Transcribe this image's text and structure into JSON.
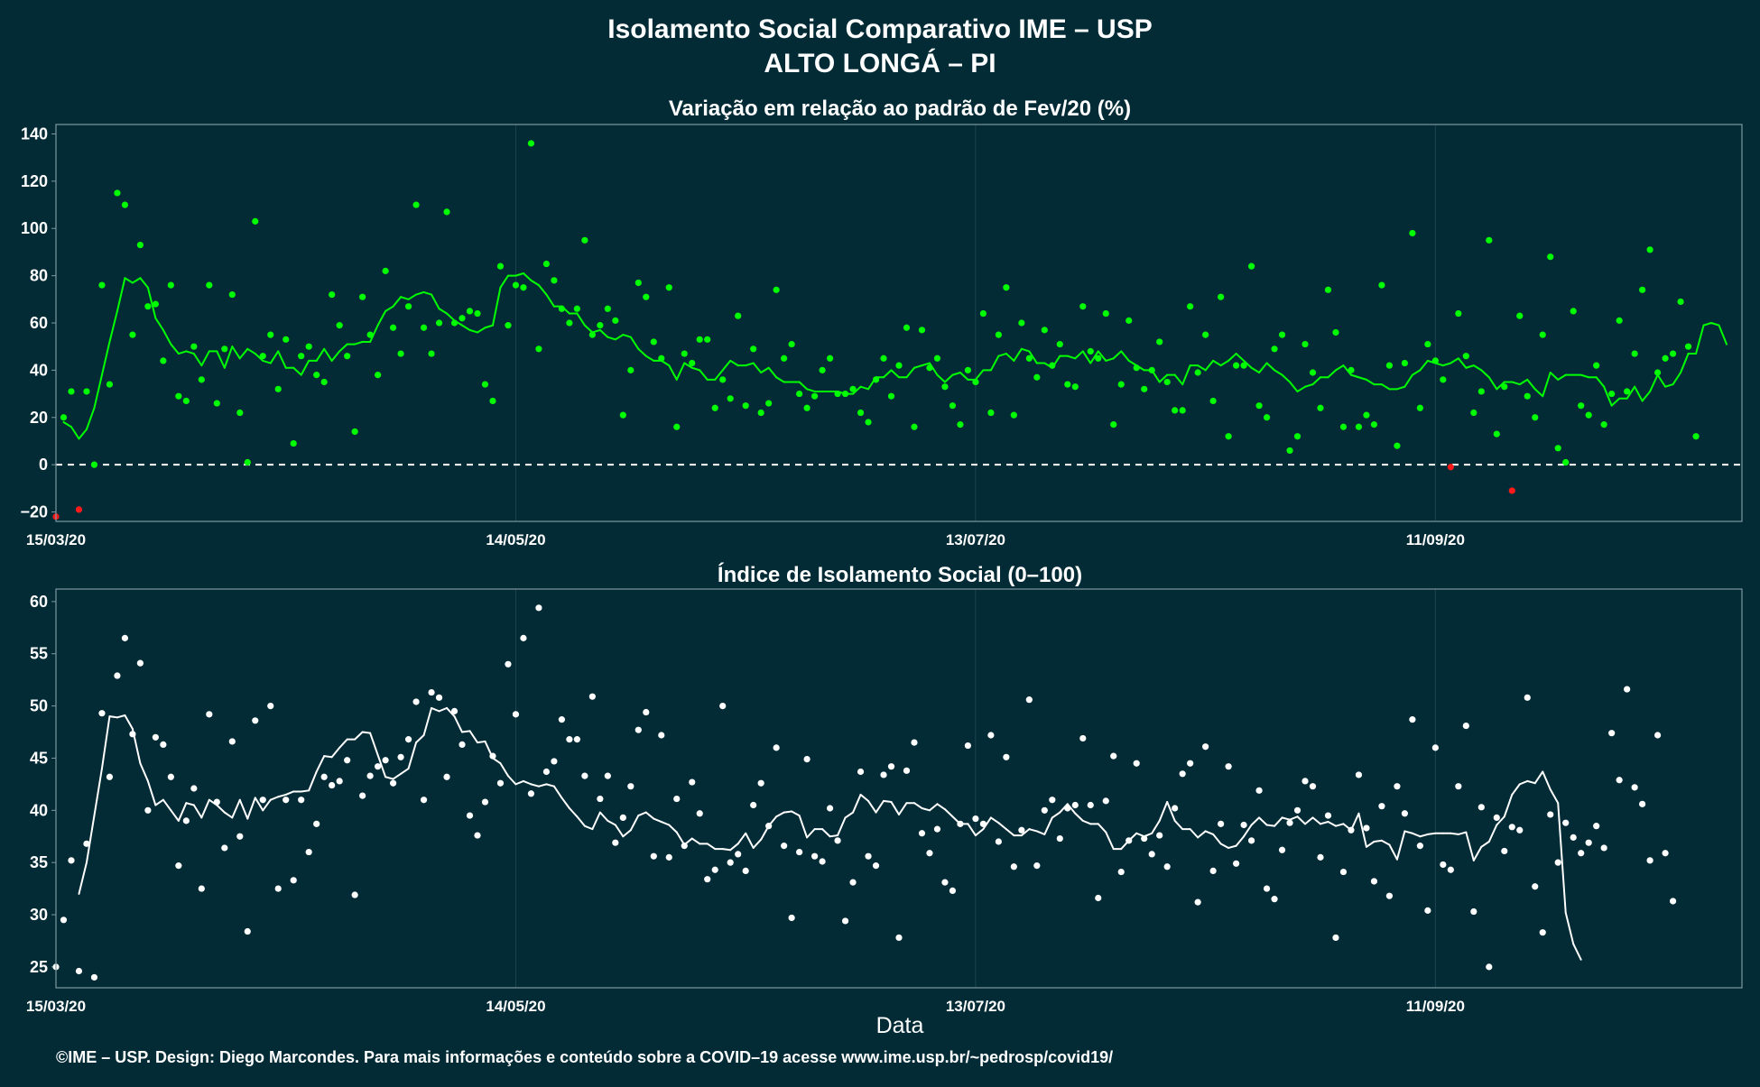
{
  "header": {
    "title": "Isolamento Social Comparativo IME – USP",
    "subtitle": "ALTO LONGÁ – PI"
  },
  "footer": {
    "xlabel": "Data",
    "credit": "©IME – USP. Design: Diego Marcondes. Para mais informações e conteúdo sobre a COVID–19 acesse www.ime.usp.br/~pedrosp/covid19/"
  },
  "colors": {
    "background": "#022b36",
    "positive": "#00ff00",
    "negative": "#ff1a1a",
    "index": "#ffffff",
    "grid": "#1d4450",
    "border": "#7f98a0"
  },
  "chart_data": [
    {
      "type": "scatter",
      "title": "Variação em relação ao padrão de Fev/20 (%)",
      "xlabel": "",
      "ylabel": "",
      "x_range": [
        "2020-03-15",
        "2020-10-21"
      ],
      "ylim": [
        -24,
        144
      ],
      "yticks": [
        -20,
        0,
        20,
        40,
        60,
        80,
        100,
        120,
        140
      ],
      "xticks": [
        {
          "date": "2020-03-15",
          "label": "15/03/20"
        },
        {
          "date": "2020-05-14",
          "label": "14/05/20"
        },
        {
          "date": "2020-07-13",
          "label": "13/07/20"
        },
        {
          "date": "2020-09-11",
          "label": "11/09/20"
        }
      ],
      "reference_line": 0,
      "grid": true,
      "series": [
        {
          "kind": "points",
          "start": "2020-03-15",
          "values": [
            -22,
            20,
            31,
            -19,
            31,
            0,
            76,
            34,
            115,
            110,
            55,
            93,
            67,
            68,
            44,
            76,
            29,
            27,
            50,
            36,
            76,
            26,
            49,
            72,
            22,
            1,
            103,
            46,
            55,
            32,
            53,
            9,
            46,
            50,
            38,
            35,
            72,
            59,
            46,
            14,
            71,
            55,
            38,
            82,
            58,
            47,
            67,
            110,
            58,
            47,
            60,
            107,
            60,
            62,
            65,
            64,
            34,
            27,
            84,
            59,
            76,
            75,
            136,
            49,
            85,
            78,
            66,
            60,
            66,
            95,
            55,
            59,
            66,
            61,
            21,
            40,
            77,
            71,
            52,
            45,
            75,
            16,
            47,
            43,
            53,
            53,
            24,
            36,
            28,
            63,
            25,
            49,
            22,
            26,
            74,
            45,
            51,
            30,
            24,
            29,
            40,
            45,
            30,
            30,
            32,
            22,
            18,
            36,
            45,
            29,
            42,
            58,
            16,
            57,
            41,
            45,
            33,
            25,
            17,
            40,
            35,
            64,
            22,
            55,
            75,
            21,
            60,
            45,
            37,
            57,
            42,
            51,
            34,
            33,
            67,
            48,
            45,
            64,
            17,
            34,
            61,
            41,
            32,
            40,
            52,
            35,
            23,
            23,
            67,
            39,
            55,
            27,
            71,
            12,
            42,
            42,
            84,
            25,
            20,
            49,
            55,
            6,
            12,
            51,
            39,
            24,
            74,
            56,
            16,
            40,
            16,
            21,
            17,
            76,
            42,
            8,
            43,
            98,
            24,
            51,
            44,
            36,
            -1,
            64,
            46,
            22,
            31,
            95,
            13,
            33,
            -11,
            63,
            29,
            20,
            55,
            88,
            7,
            1,
            65,
            25,
            21,
            42,
            17,
            30,
            61,
            31,
            47,
            74,
            91,
            39,
            45,
            47,
            69,
            50,
            12
          ]
        },
        {
          "kind": "moving-average",
          "start": "2020-03-16",
          "values": [
            18,
            16,
            11,
            15,
            24,
            38,
            52,
            65,
            79,
            77,
            79,
            75,
            62,
            57,
            51,
            47,
            48,
            47,
            42,
            48,
            48,
            41,
            50,
            45,
            49,
            47,
            44,
            43,
            48,
            41,
            41,
            38,
            44,
            44,
            49,
            44,
            48,
            51,
            51,
            52,
            52,
            59,
            65,
            67,
            71,
            70,
            72,
            73,
            72,
            66,
            64,
            61,
            59,
            57,
            56,
            58,
            59,
            75,
            80,
            80,
            81,
            78,
            76,
            72,
            67,
            67,
            64,
            64,
            59,
            56,
            57,
            54,
            53,
            55,
            54,
            49,
            46,
            44,
            44,
            42,
            36,
            43,
            41,
            40,
            36,
            36,
            40,
            44,
            42,
            42,
            43,
            39,
            41,
            37,
            35,
            35,
            35,
            32,
            31,
            31,
            31,
            31,
            30,
            30,
            33,
            32,
            37,
            37,
            40,
            37,
            37,
            41,
            42,
            43,
            38,
            35,
            38,
            39,
            36,
            36,
            40,
            40,
            46,
            47,
            44,
            49,
            48,
            43,
            43,
            41,
            46,
            46,
            45,
            48,
            43,
            48,
            44,
            45,
            48,
            44,
            42,
            40,
            40,
            35,
            38,
            38,
            34,
            42,
            42,
            40,
            44,
            42,
            44,
            47,
            44,
            41,
            39,
            43,
            40,
            38,
            35,
            31,
            33,
            34,
            37,
            37,
            40,
            42,
            38,
            37,
            36,
            34,
            34,
            32,
            32,
            33,
            38,
            40,
            44,
            43,
            42,
            43,
            45,
            41,
            42,
            40,
            37,
            32,
            35,
            35,
            34,
            36,
            32,
            29,
            39,
            36,
            38,
            38,
            38,
            37,
            37,
            33,
            25,
            28,
            28,
            33,
            27,
            31,
            38,
            33,
            34,
            39,
            47,
            47,
            59,
            60,
            59,
            51
          ]
        }
      ]
    },
    {
      "type": "scatter",
      "title": "Índice de Isolamento Social (0–100)",
      "xlabel": "Data",
      "ylabel": "",
      "x_range": [
        "2020-03-15",
        "2020-10-21"
      ],
      "ylim": [
        23,
        61.2
      ],
      "yticks": [
        25,
        30,
        35,
        40,
        45,
        50,
        55,
        60
      ],
      "xticks": [
        {
          "date": "2020-03-15",
          "label": "15/03/20"
        },
        {
          "date": "2020-05-14",
          "label": "14/05/20"
        },
        {
          "date": "2020-07-13",
          "label": "13/07/20"
        },
        {
          "date": "2020-09-11",
          "label": "11/09/20"
        }
      ],
      "grid": true,
      "series": [
        {
          "kind": "points",
          "start": "2020-03-15",
          "values": [
            25,
            29.5,
            35.2,
            24.6,
            36.8,
            24,
            49.3,
            43.2,
            52.9,
            56.5,
            47.3,
            54.1,
            40,
            47,
            46.3,
            43.2,
            34.7,
            39,
            42.1,
            32.5,
            49.2,
            40.8,
            36.4,
            46.6,
            37.5,
            28.4,
            48.6,
            41,
            50,
            32.5,
            41,
            33.3,
            41,
            36,
            38.7,
            43.2,
            42.4,
            42.8,
            44.8,
            31.9,
            41.4,
            43.3,
            44.2,
            44.8,
            42.6,
            45.1,
            46.8,
            50.4,
            41,
            51.3,
            50.8,
            43.2,
            49.5,
            46.3,
            39.5,
            37.6,
            40.8,
            45.2,
            42.6,
            54,
            49.2,
            56.5,
            41.6,
            59.4,
            43.7,
            44.7,
            48.7,
            46.8,
            46.8,
            43.3,
            50.9,
            41.1,
            43.3,
            36.9,
            39.3,
            42.3,
            47.7,
            49.4,
            35.6,
            47.2,
            35.5,
            41.1,
            36.6,
            42.7,
            39.7,
            33.4,
            34.3,
            50,
            35,
            35.8,
            34.2,
            40.5,
            42.6,
            38.5,
            46,
            36.6,
            29.7,
            36,
            44.9,
            35.6,
            35.1,
            40.2,
            37.1,
            29.4,
            33.1,
            43.7,
            35.6,
            34.7,
            43.4,
            44.2,
            27.8,
            43.8,
            46.5,
            37.8,
            35.9,
            38.2,
            33.1,
            32.3,
            38.7,
            46.2,
            39.2,
            38.7,
            47.2,
            37,
            45.1,
            34.6,
            38.1,
            50.6,
            34.7,
            40,
            41,
            37.3,
            40.2,
            40.5,
            46.9,
            40.5,
            31.6,
            40.9,
            45.2,
            34.1,
            37.1,
            44.5,
            37.3,
            35.8,
            37.6,
            34.6,
            40.2,
            43.5,
            44.5,
            31.2,
            46.1,
            34.2,
            38.7,
            44.2,
            34.9,
            38.6,
            37.1,
            41.9,
            32.5,
            31.5,
            36.2,
            38.8,
            40,
            42.8,
            42.3,
            35.5,
            39.5,
            27.8,
            34.1,
            38.1,
            43.4,
            38.3,
            33.2,
            40.4,
            31.8,
            42.3,
            39.7,
            48.7,
            36.6,
            30.4,
            46,
            34.8,
            34.3,
            42.3,
            48.1,
            30.3,
            40.3,
            25,
            39.3,
            36.1,
            38.4,
            38.1,
            50.8,
            32.7,
            28.3,
            39.6,
            35,
            38.8,
            37.4,
            35.9,
            36.9,
            38.5,
            36.4,
            47.4,
            42.9,
            51.6,
            42.2,
            40.6,
            35.2,
            47.2,
            35.9,
            31.3
          ]
        },
        {
          "kind": "moving-average",
          "start": "2020-03-18",
          "values": [
            32,
            35,
            39.5,
            44,
            49,
            48.9,
            49.1,
            47.8,
            44.5,
            42.8,
            40.5,
            41,
            40,
            39,
            40.7,
            40.5,
            39.3,
            41,
            40.5,
            39.8,
            39.3,
            41,
            39.2,
            41.2,
            40,
            41,
            41.3,
            41.5,
            41.8,
            41.8,
            41.9,
            43.7,
            45.2,
            45.1,
            46,
            46.8,
            46.8,
            47.5,
            47.4,
            45.3,
            43.2,
            43,
            43.5,
            44,
            46.5,
            47.2,
            49.8,
            49.5,
            49.8,
            49,
            47.5,
            47.6,
            46.5,
            46.6,
            45,
            44.5,
            43.3,
            42.5,
            42.8,
            42.5,
            42.3,
            42.5,
            42.3,
            41.2,
            40.2,
            39.4,
            38.5,
            38.2,
            39.8,
            39,
            38.6,
            37.5,
            38.1,
            39.5,
            39.8,
            39.2,
            38.9,
            38.6,
            37.9,
            36.7,
            37.3,
            36.8,
            36.8,
            36.3,
            36.3,
            36.2,
            36.8,
            37.8,
            36.4,
            37.2,
            38.5,
            39.4,
            39.8,
            39.9,
            39.5,
            37.4,
            38.2,
            38.2,
            37.5,
            37.6,
            39.3,
            39.8,
            41.5,
            40.9,
            39.8,
            40.9,
            40.8,
            39.6,
            40.7,
            40.7,
            40.2,
            40,
            40.6,
            40.1,
            39.4,
            38.7,
            38.7,
            37.6,
            38.2,
            39.3,
            38.8,
            38.2,
            37.6,
            37.6,
            38.2,
            38,
            37.7,
            39.3,
            39.8,
            40.6,
            39.7,
            39,
            38.7,
            38.7,
            37.9,
            36.3,
            36.3,
            37.1,
            37.8,
            37.5,
            37.8,
            39,
            40.8,
            39,
            38.2,
            38.2,
            37.4,
            38,
            37.7,
            36.8,
            36.4,
            36.6,
            37.5,
            38.6,
            39.3,
            38.6,
            38.5,
            39.3,
            39.1,
            39.4,
            38.7,
            39.3,
            38.7,
            38.9,
            38.5,
            38.7,
            38.1,
            39.7,
            36.5,
            37,
            37.1,
            36.7,
            35.3,
            38,
            37.8,
            37.5,
            37.7,
            37.8,
            37.8,
            37.8,
            37.7,
            37.9,
            35.2,
            36.5,
            37,
            38.6,
            39.4,
            41.5,
            42.5,
            42.8,
            42.6,
            43.7,
            42,
            40.7,
            30.2,
            27.2,
            25.7
          ]
        }
      ]
    }
  ]
}
